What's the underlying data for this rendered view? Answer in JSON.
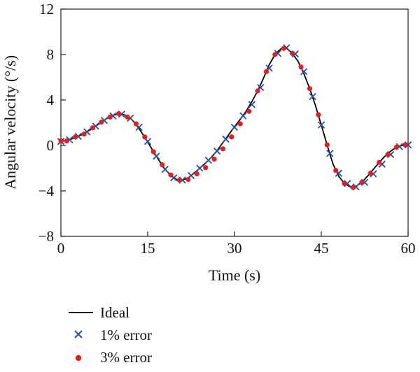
{
  "chart_data": {
    "type": "line",
    "xlabel": "Time (s)",
    "ylabel": "Angular velocity (°/s)",
    "xlim": [
      0,
      60
    ],
    "ylim": [
      -8,
      12
    ],
    "xticks": [
      0,
      15,
      30,
      45,
      60
    ],
    "yticks": [
      -8,
      -4,
      0,
      4,
      8,
      12
    ],
    "xtick_labels": [
      "0",
      "15",
      "30",
      "45",
      "60"
    ],
    "ytick_labels": [
      "−8",
      "−4",
      "0",
      "4",
      "8",
      "12"
    ],
    "grid": false,
    "legend_position": "bottom-left, below the plot",
    "series": [
      {
        "name": "Ideal",
        "style": "line",
        "color": "#000000",
        "x": [
          0,
          1,
          2,
          3,
          4,
          5,
          6,
          7,
          8,
          9,
          10,
          11,
          12,
          13,
          14,
          15,
          16,
          17,
          18,
          19,
          20,
          21,
          22,
          23,
          24,
          25,
          26,
          27,
          28,
          29,
          30,
          31,
          32,
          33,
          34,
          35,
          36,
          37,
          38,
          39,
          40,
          41,
          42,
          43,
          44,
          45,
          46,
          47,
          48,
          49,
          50,
          51,
          52,
          53,
          54,
          55,
          56,
          57,
          58,
          59,
          60
        ],
        "y": [
          0.35,
          0.45,
          0.6,
          0.8,
          1.05,
          1.35,
          1.7,
          2.05,
          2.4,
          2.65,
          2.75,
          2.7,
          2.4,
          1.85,
          1.1,
          0.3,
          -0.55,
          -1.35,
          -2.1,
          -2.65,
          -3.0,
          -3.05,
          -2.85,
          -2.45,
          -2.0,
          -1.55,
          -1.05,
          -0.45,
          0.25,
          0.95,
          1.65,
          2.3,
          3.0,
          3.85,
          4.8,
          5.9,
          7.1,
          8.0,
          8.5,
          8.55,
          8.1,
          7.4,
          6.3,
          5.0,
          3.5,
          1.8,
          0.05,
          -1.6,
          -2.7,
          -3.35,
          -3.65,
          -3.6,
          -3.25,
          -2.7,
          -2.1,
          -1.5,
          -0.95,
          -0.5,
          -0.15,
          0.0,
          0.05
        ]
      },
      {
        "name": "1% error",
        "style": "x-marker",
        "color": "#2a4ea8",
        "x": [
          0,
          1.5,
          3,
          4.5,
          6,
          7.5,
          9,
          10.5,
          12,
          13.5,
          15,
          16.5,
          18,
          19.5,
          21,
          22.5,
          24,
          25.5,
          27,
          28.5,
          30,
          31.5,
          33,
          34.5,
          36,
          37.5,
          39,
          40.5,
          42,
          43.5,
          45,
          46.5,
          48,
          49.5,
          51,
          52.5,
          54,
          55.5,
          57,
          58.5,
          60
        ],
        "y": [
          0.35,
          0.5,
          0.8,
          1.2,
          1.7,
          2.2,
          2.6,
          2.75,
          2.4,
          1.6,
          0.35,
          -0.95,
          -2.1,
          -2.85,
          -3.05,
          -2.65,
          -2.0,
          -1.3,
          -0.5,
          0.55,
          1.6,
          2.6,
          3.6,
          5.1,
          6.8,
          8.1,
          8.6,
          8.05,
          6.5,
          4.3,
          1.8,
          -0.7,
          -2.45,
          -3.35,
          -3.65,
          -3.25,
          -2.5,
          -1.65,
          -0.8,
          -0.1,
          0.05
        ]
      },
      {
        "name": "3% error",
        "style": "dot-marker",
        "color": "#e02020",
        "x": [
          0,
          1,
          2.5,
          4,
          5.5,
          7,
          8.5,
          10,
          11.5,
          13,
          14.5,
          16,
          17.5,
          19,
          20.5,
          22,
          23.5,
          25,
          26.5,
          28,
          29.5,
          31,
          32.5,
          34,
          35.5,
          37,
          38.5,
          40,
          41.5,
          43,
          44.5,
          46,
          47.5,
          49,
          50.5,
          52,
          53.5,
          55,
          56.5,
          58,
          59.5
        ],
        "y": [
          0.4,
          0.4,
          0.75,
          1.0,
          1.55,
          2.05,
          2.5,
          2.8,
          2.5,
          1.9,
          0.75,
          -0.55,
          -1.7,
          -2.6,
          -3.05,
          -3.0,
          -2.5,
          -1.95,
          -1.2,
          -0.3,
          0.75,
          1.9,
          3.0,
          4.8,
          6.5,
          8.0,
          8.55,
          8.1,
          6.9,
          5.0,
          2.7,
          0.05,
          -2.2,
          -3.35,
          -3.7,
          -3.25,
          -2.45,
          -1.5,
          -0.8,
          -0.15,
          0.05
        ]
      }
    ]
  }
}
